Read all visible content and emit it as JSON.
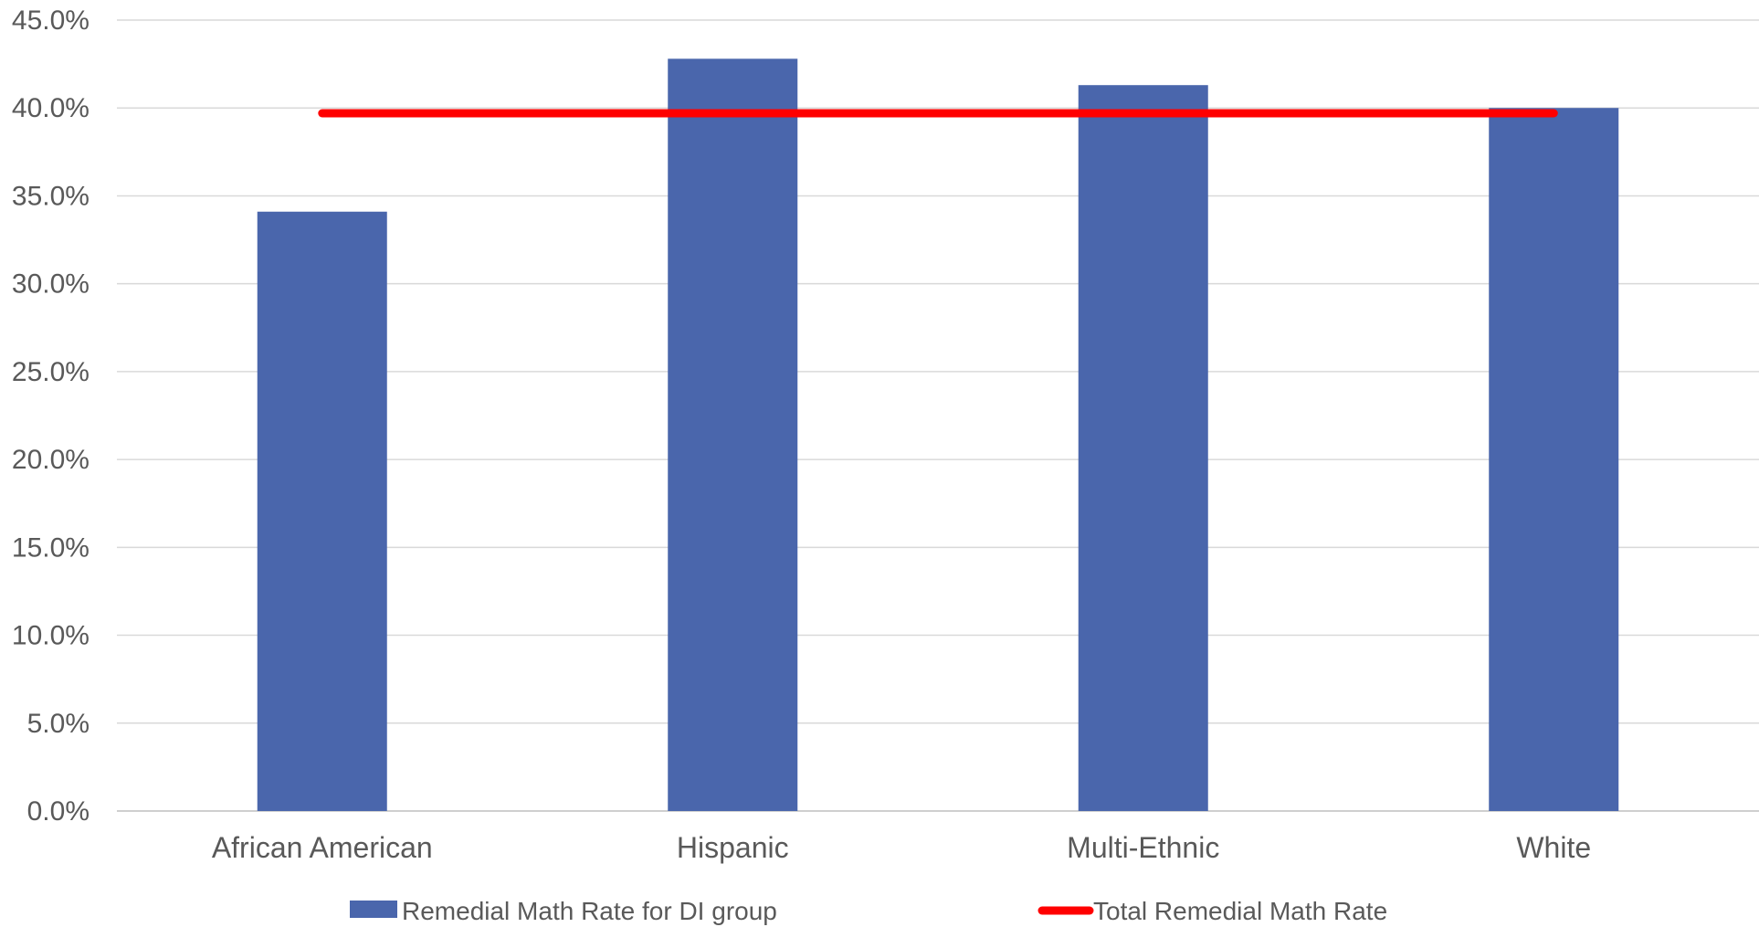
{
  "chart_data": {
    "type": "bar",
    "categories": [
      "African American",
      "Hispanic",
      "Multi-Ethnic",
      "White"
    ],
    "series": [
      {
        "name": "Remedial Math Rate for DI group",
        "kind": "bar",
        "color": "#4A66AC",
        "values": [
          34.1,
          42.8,
          41.3,
          40.0
        ]
      },
      {
        "name": "Total Remedial Math Rate",
        "kind": "line",
        "color": "#FF0000",
        "values": [
          39.7,
          39.7,
          39.7,
          39.7
        ]
      }
    ],
    "title": "",
    "xlabel": "",
    "ylabel": "",
    "ylim": [
      0,
      45
    ],
    "yticks": [
      0,
      5,
      10,
      15,
      20,
      25,
      30,
      35,
      40,
      45
    ],
    "ytick_labels": [
      "0.0%",
      "5.0%",
      "10.0%",
      "15.0%",
      "20.0%",
      "25.0%",
      "30.0%",
      "35.0%",
      "40.0%",
      "45.0%"
    ],
    "grid": true,
    "legend_position": "bottom"
  }
}
